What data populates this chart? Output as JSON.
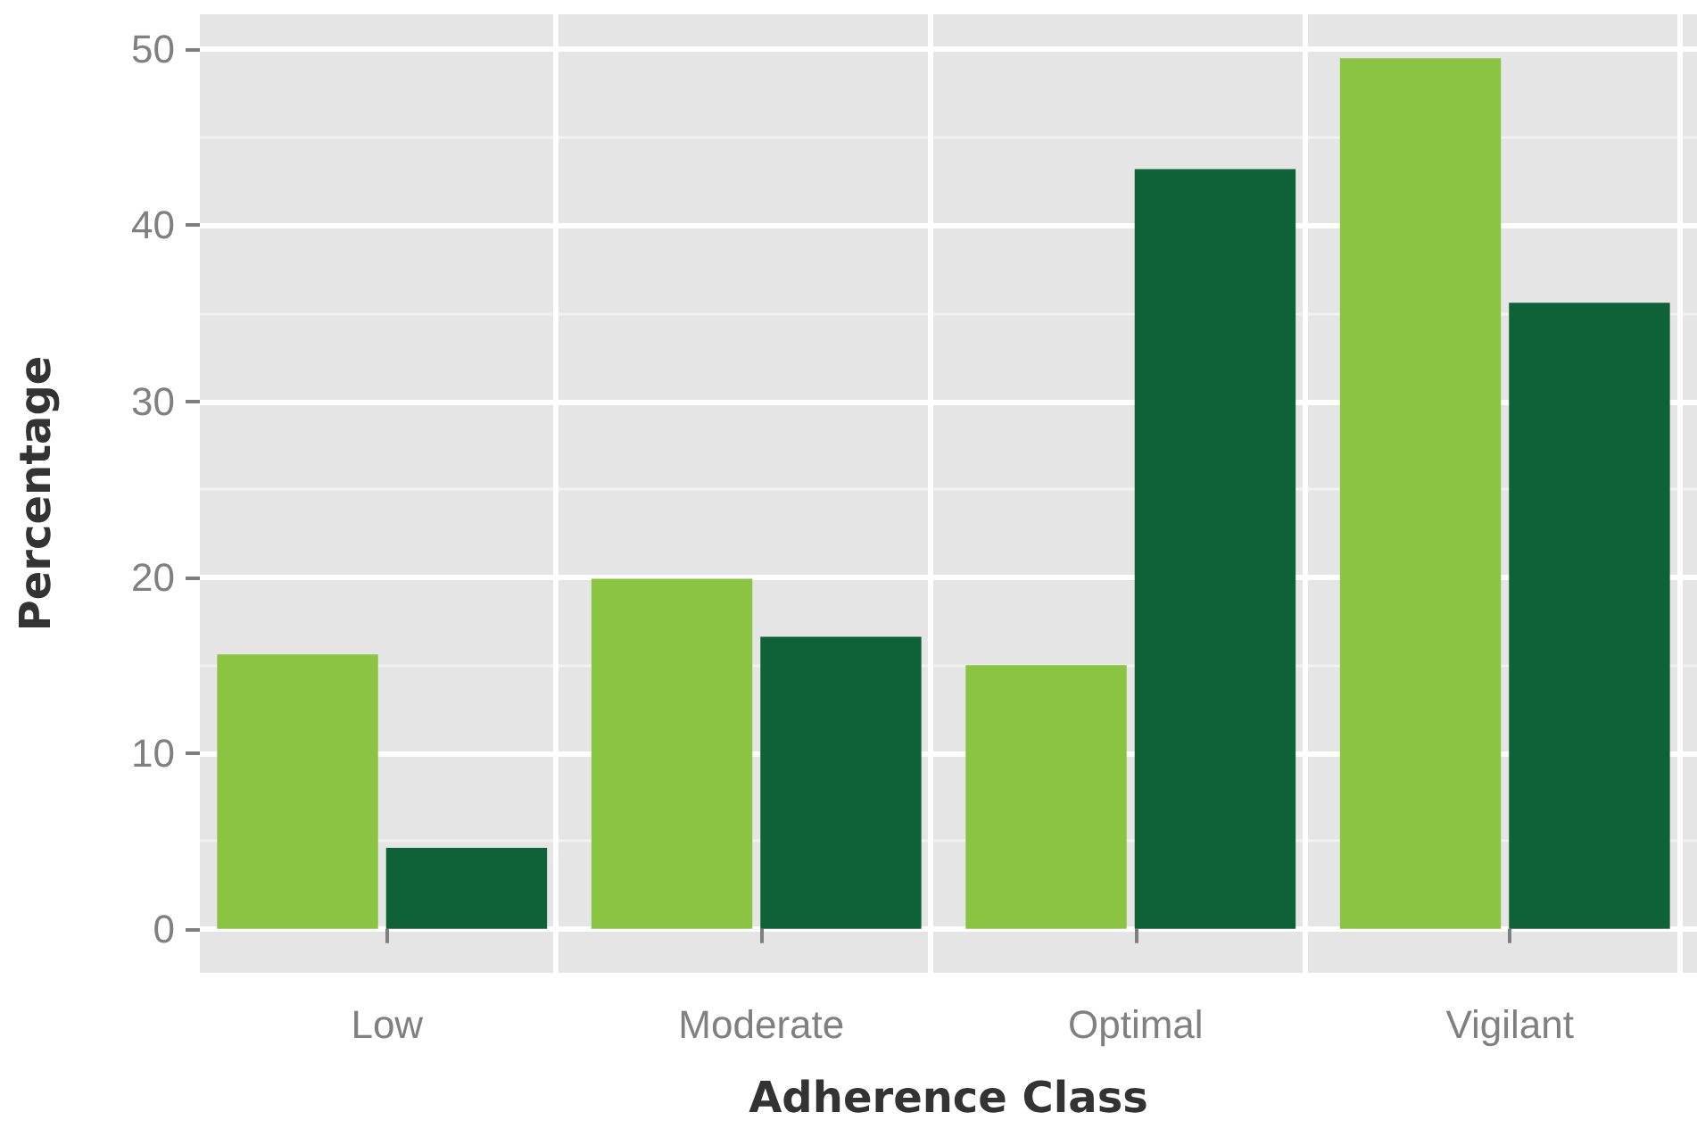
{
  "chart_data": {
    "type": "bar",
    "xlabel": "Adherence Class",
    "ylabel": "Percentage",
    "categories": [
      "Low",
      "Moderate",
      "Optimal",
      "Vigilant"
    ],
    "series": [
      {
        "color": "#8bc443",
        "values": [
          15.6,
          19.9,
          15.0,
          49.5
        ]
      },
      {
        "color": "#0f6137",
        "values": [
          4.6,
          16.6,
          43.2,
          35.6
        ]
      }
    ],
    "ylim": [
      -2.5,
      52
    ],
    "yticks": [
      0,
      10,
      20,
      30,
      40,
      50
    ],
    "grid": true
  }
}
